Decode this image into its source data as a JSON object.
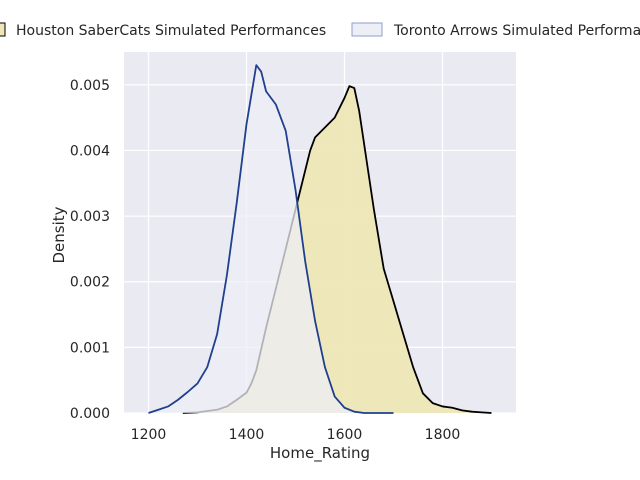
{
  "chart_data": {
    "type": "area",
    "title": "",
    "xlabel": "Home_Rating",
    "ylabel": "Density",
    "xlim": [
      1150,
      1950
    ],
    "ylim": [
      0,
      0.0055
    ],
    "grid": true,
    "legend_placement": "top",
    "x_ticks": [
      {
        "value": 1200,
        "label": "1200"
      },
      {
        "value": 1400,
        "label": "1400"
      },
      {
        "value": 1600,
        "label": "1600"
      },
      {
        "value": 1800,
        "label": "1800"
      }
    ],
    "y_ticks": [
      {
        "value": 0.0,
        "label": "0.000"
      },
      {
        "value": 0.001,
        "label": "0.001"
      },
      {
        "value": 0.002,
        "label": "0.002"
      },
      {
        "value": 0.003,
        "label": "0.003"
      },
      {
        "value": 0.004,
        "label": "0.004"
      },
      {
        "value": 0.005,
        "label": "0.005"
      }
    ],
    "series": [
      {
        "name": "Houston SaberCats Simulated Performances",
        "fill": "#eee6b4",
        "stroke": "#000000",
        "filled": true,
        "points": [
          [
            1270,
            0.0
          ],
          [
            1300,
            1e-05
          ],
          [
            1320,
            3e-05
          ],
          [
            1340,
            5e-05
          ],
          [
            1360,
            0.0001
          ],
          [
            1380,
            0.0002
          ],
          [
            1400,
            0.00031
          ],
          [
            1410,
            0.00045
          ],
          [
            1420,
            0.00065
          ],
          [
            1440,
            0.0013
          ],
          [
            1460,
            0.0019
          ],
          [
            1480,
            0.0025
          ],
          [
            1500,
            0.0031
          ],
          [
            1520,
            0.0037
          ],
          [
            1530,
            0.004
          ],
          [
            1540,
            0.0042
          ],
          [
            1560,
            0.00435
          ],
          [
            1580,
            0.0045
          ],
          [
            1600,
            0.0048
          ],
          [
            1610,
            0.00498
          ],
          [
            1620,
            0.00495
          ],
          [
            1630,
            0.0046
          ],
          [
            1640,
            0.0041
          ],
          [
            1660,
            0.0031
          ],
          [
            1680,
            0.0022
          ],
          [
            1700,
            0.0017
          ],
          [
            1720,
            0.0012
          ],
          [
            1740,
            0.0007
          ],
          [
            1760,
            0.0003
          ],
          [
            1780,
            0.00015
          ],
          [
            1800,
            0.0001
          ],
          [
            1820,
            8e-05
          ],
          [
            1840,
            4e-05
          ],
          [
            1860,
            2e-05
          ],
          [
            1880,
            1e-05
          ],
          [
            1900,
            0.0
          ]
        ]
      },
      {
        "name": "Toronto Arrows Simulated Performances",
        "fill": "#eeeef6",
        "stroke": "#1f3f8f",
        "filled": false,
        "points": [
          [
            1200,
            0.0
          ],
          [
            1220,
            5e-05
          ],
          [
            1240,
            0.0001
          ],
          [
            1260,
            0.0002
          ],
          [
            1280,
            0.00032
          ],
          [
            1300,
            0.00045
          ],
          [
            1320,
            0.0007
          ],
          [
            1340,
            0.0012
          ],
          [
            1360,
            0.0021
          ],
          [
            1380,
            0.0032
          ],
          [
            1400,
            0.0044
          ],
          [
            1420,
            0.0053
          ],
          [
            1430,
            0.0052
          ],
          [
            1440,
            0.0049
          ],
          [
            1460,
            0.0047
          ],
          [
            1480,
            0.0043
          ],
          [
            1500,
            0.0034
          ],
          [
            1520,
            0.0023
          ],
          [
            1540,
            0.0014
          ],
          [
            1560,
            0.0007
          ],
          [
            1580,
            0.00025
          ],
          [
            1600,
            8e-05
          ],
          [
            1620,
            2e-05
          ],
          [
            1640,
            0.0
          ],
          [
            1700,
            0.0
          ]
        ]
      }
    ]
  }
}
